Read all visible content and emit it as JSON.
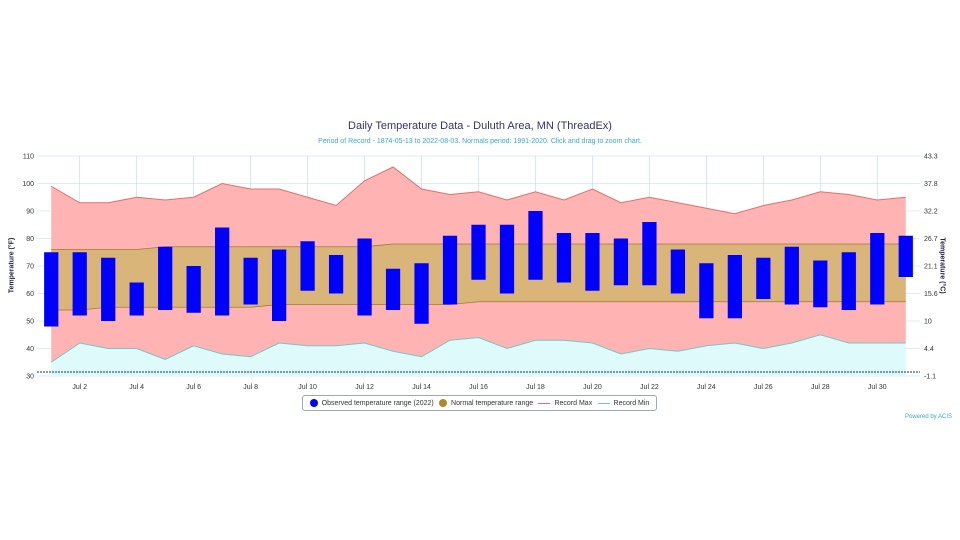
{
  "title": "Daily Temperature Data - Duluth Area, MN (ThreadEx)",
  "subtitle": "Period of Record - 1874-05-13 to 2022-08-03. Normals period: 1991-2020. Click and drag to zoom chart.",
  "credit": "Powered by ACIS",
  "colors": {
    "observed": "#0000ff",
    "normal": "#d9b57a",
    "record_max_fill": "#ffb3b3",
    "record_max_line": "#e07070",
    "record_min_fill": "#dffafa",
    "record_min_line": "#70c8c8",
    "grid": "#b8dde3"
  },
  "legend": [
    {
      "label": "Observed temperature range (2022)",
      "marker": "dot",
      "color": "#0000ff"
    },
    {
      "label": "Normal temperature range",
      "marker": "dot",
      "color": "#b08a2a"
    },
    {
      "label": "Record Max",
      "marker": "line",
      "color": "#e07070"
    },
    {
      "label": "Record Min",
      "marker": "line",
      "color": "#70c8c8"
    }
  ],
  "chart_data": {
    "type": "bar",
    "title": "Daily Temperature Data - Duluth Area, MN (ThreadEx)",
    "ylabel": "Temperature (°F)",
    "ylabel_right": "Temperature (°C)",
    "ylim": [
      30,
      110
    ],
    "yticks_left": [
      "30",
      "40",
      "50",
      "60",
      "70",
      "80",
      "90",
      "100",
      "110"
    ],
    "yticks_right": [
      "-1.1",
      "4.4",
      "10",
      "15.6",
      "21.1",
      "26.7",
      "32.2",
      "37.8",
      "43.3"
    ],
    "x_tick_labels": [
      "Jul 2",
      "Jul 4",
      "Jul 6",
      "Jul 8",
      "Jul 10",
      "Jul 12",
      "Jul 14",
      "Jul 16",
      "Jul 18",
      "Jul 20",
      "Jul 22",
      "Jul 24",
      "Jul 26",
      "Jul 28",
      "Jul 30"
    ],
    "days": [
      1,
      2,
      3,
      4,
      5,
      6,
      7,
      8,
      9,
      10,
      11,
      12,
      13,
      14,
      15,
      16,
      17,
      18,
      19,
      20,
      21,
      22,
      23,
      24,
      25,
      26,
      27,
      28,
      29,
      30,
      31
    ],
    "grid": true,
    "legend_position": "bottom",
    "series": [
      {
        "name": "Observed temperature range (2022)",
        "type": "columnrange",
        "low": [
          48,
          52,
          50,
          52,
          54,
          53,
          52,
          56,
          50,
          61,
          60,
          52,
          54,
          49,
          56,
          65,
          60,
          65,
          64,
          61,
          63,
          63,
          60,
          51,
          51,
          58,
          56,
          55,
          54,
          56,
          66
        ],
        "high": [
          75,
          75,
          73,
          64,
          77,
          70,
          84,
          73,
          76,
          79,
          74,
          80,
          69,
          71,
          81,
          85,
          85,
          90,
          82,
          82,
          80,
          86,
          76,
          71,
          74,
          73,
          77,
          72,
          75,
          82,
          81
        ]
      },
      {
        "name": "Normal temperature range",
        "type": "arearange",
        "low": [
          54,
          54,
          55,
          55,
          55,
          55,
          55,
          55,
          56,
          56,
          56,
          56,
          56,
          56,
          56,
          57,
          57,
          57,
          57,
          57,
          57,
          57,
          57,
          57,
          57,
          57,
          57,
          57,
          57,
          57,
          57
        ],
        "high": [
          76,
          76,
          76,
          76,
          77,
          77,
          77,
          77,
          77,
          77,
          77,
          77,
          78,
          78,
          78,
          78,
          78,
          78,
          78,
          78,
          78,
          78,
          78,
          78,
          78,
          78,
          78,
          78,
          78,
          78,
          78
        ]
      },
      {
        "name": "Record Max",
        "type": "line",
        "values": [
          99,
          93,
          93,
          95,
          94,
          95,
          100,
          98,
          98,
          95,
          92,
          101,
          106,
          98,
          96,
          97,
          94,
          97,
          94,
          98,
          93,
          95,
          93,
          91,
          89,
          92,
          94,
          97,
          96,
          94,
          95
        ]
      },
      {
        "name": "Record Min",
        "type": "line",
        "values": [
          35,
          42,
          40,
          40,
          36,
          41,
          38,
          37,
          42,
          41,
          41,
          42,
          39,
          37,
          43,
          44,
          40,
          43,
          43,
          42,
          38,
          40,
          39,
          41,
          42,
          40,
          42,
          45,
          42,
          42,
          42
        ]
      }
    ]
  }
}
